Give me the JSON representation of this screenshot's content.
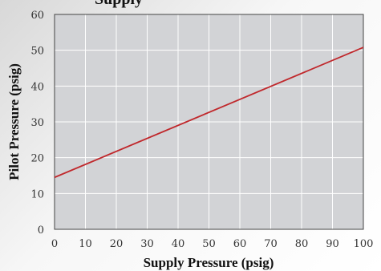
{
  "chart_data": {
    "type": "line",
    "title": "Supply",
    "xlabel": "Supply Pressure (psig)",
    "ylabel": "Pilot Pressure (psig)",
    "xlim": [
      0,
      100
    ],
    "ylim": [
      0,
      60
    ],
    "x_ticks": [
      0,
      10,
      20,
      30,
      40,
      50,
      60,
      70,
      80,
      90,
      100
    ],
    "y_ticks": [
      0,
      10,
      20,
      30,
      40,
      50,
      60
    ],
    "grid": true,
    "series": [
      {
        "x": [
          0,
          100
        ],
        "y": [
          14.5,
          50.8
        ]
      }
    ],
    "colors": {
      "plot_background": "#d2d3d6",
      "grid": "#ffffff",
      "line": "#c0282c"
    }
  }
}
